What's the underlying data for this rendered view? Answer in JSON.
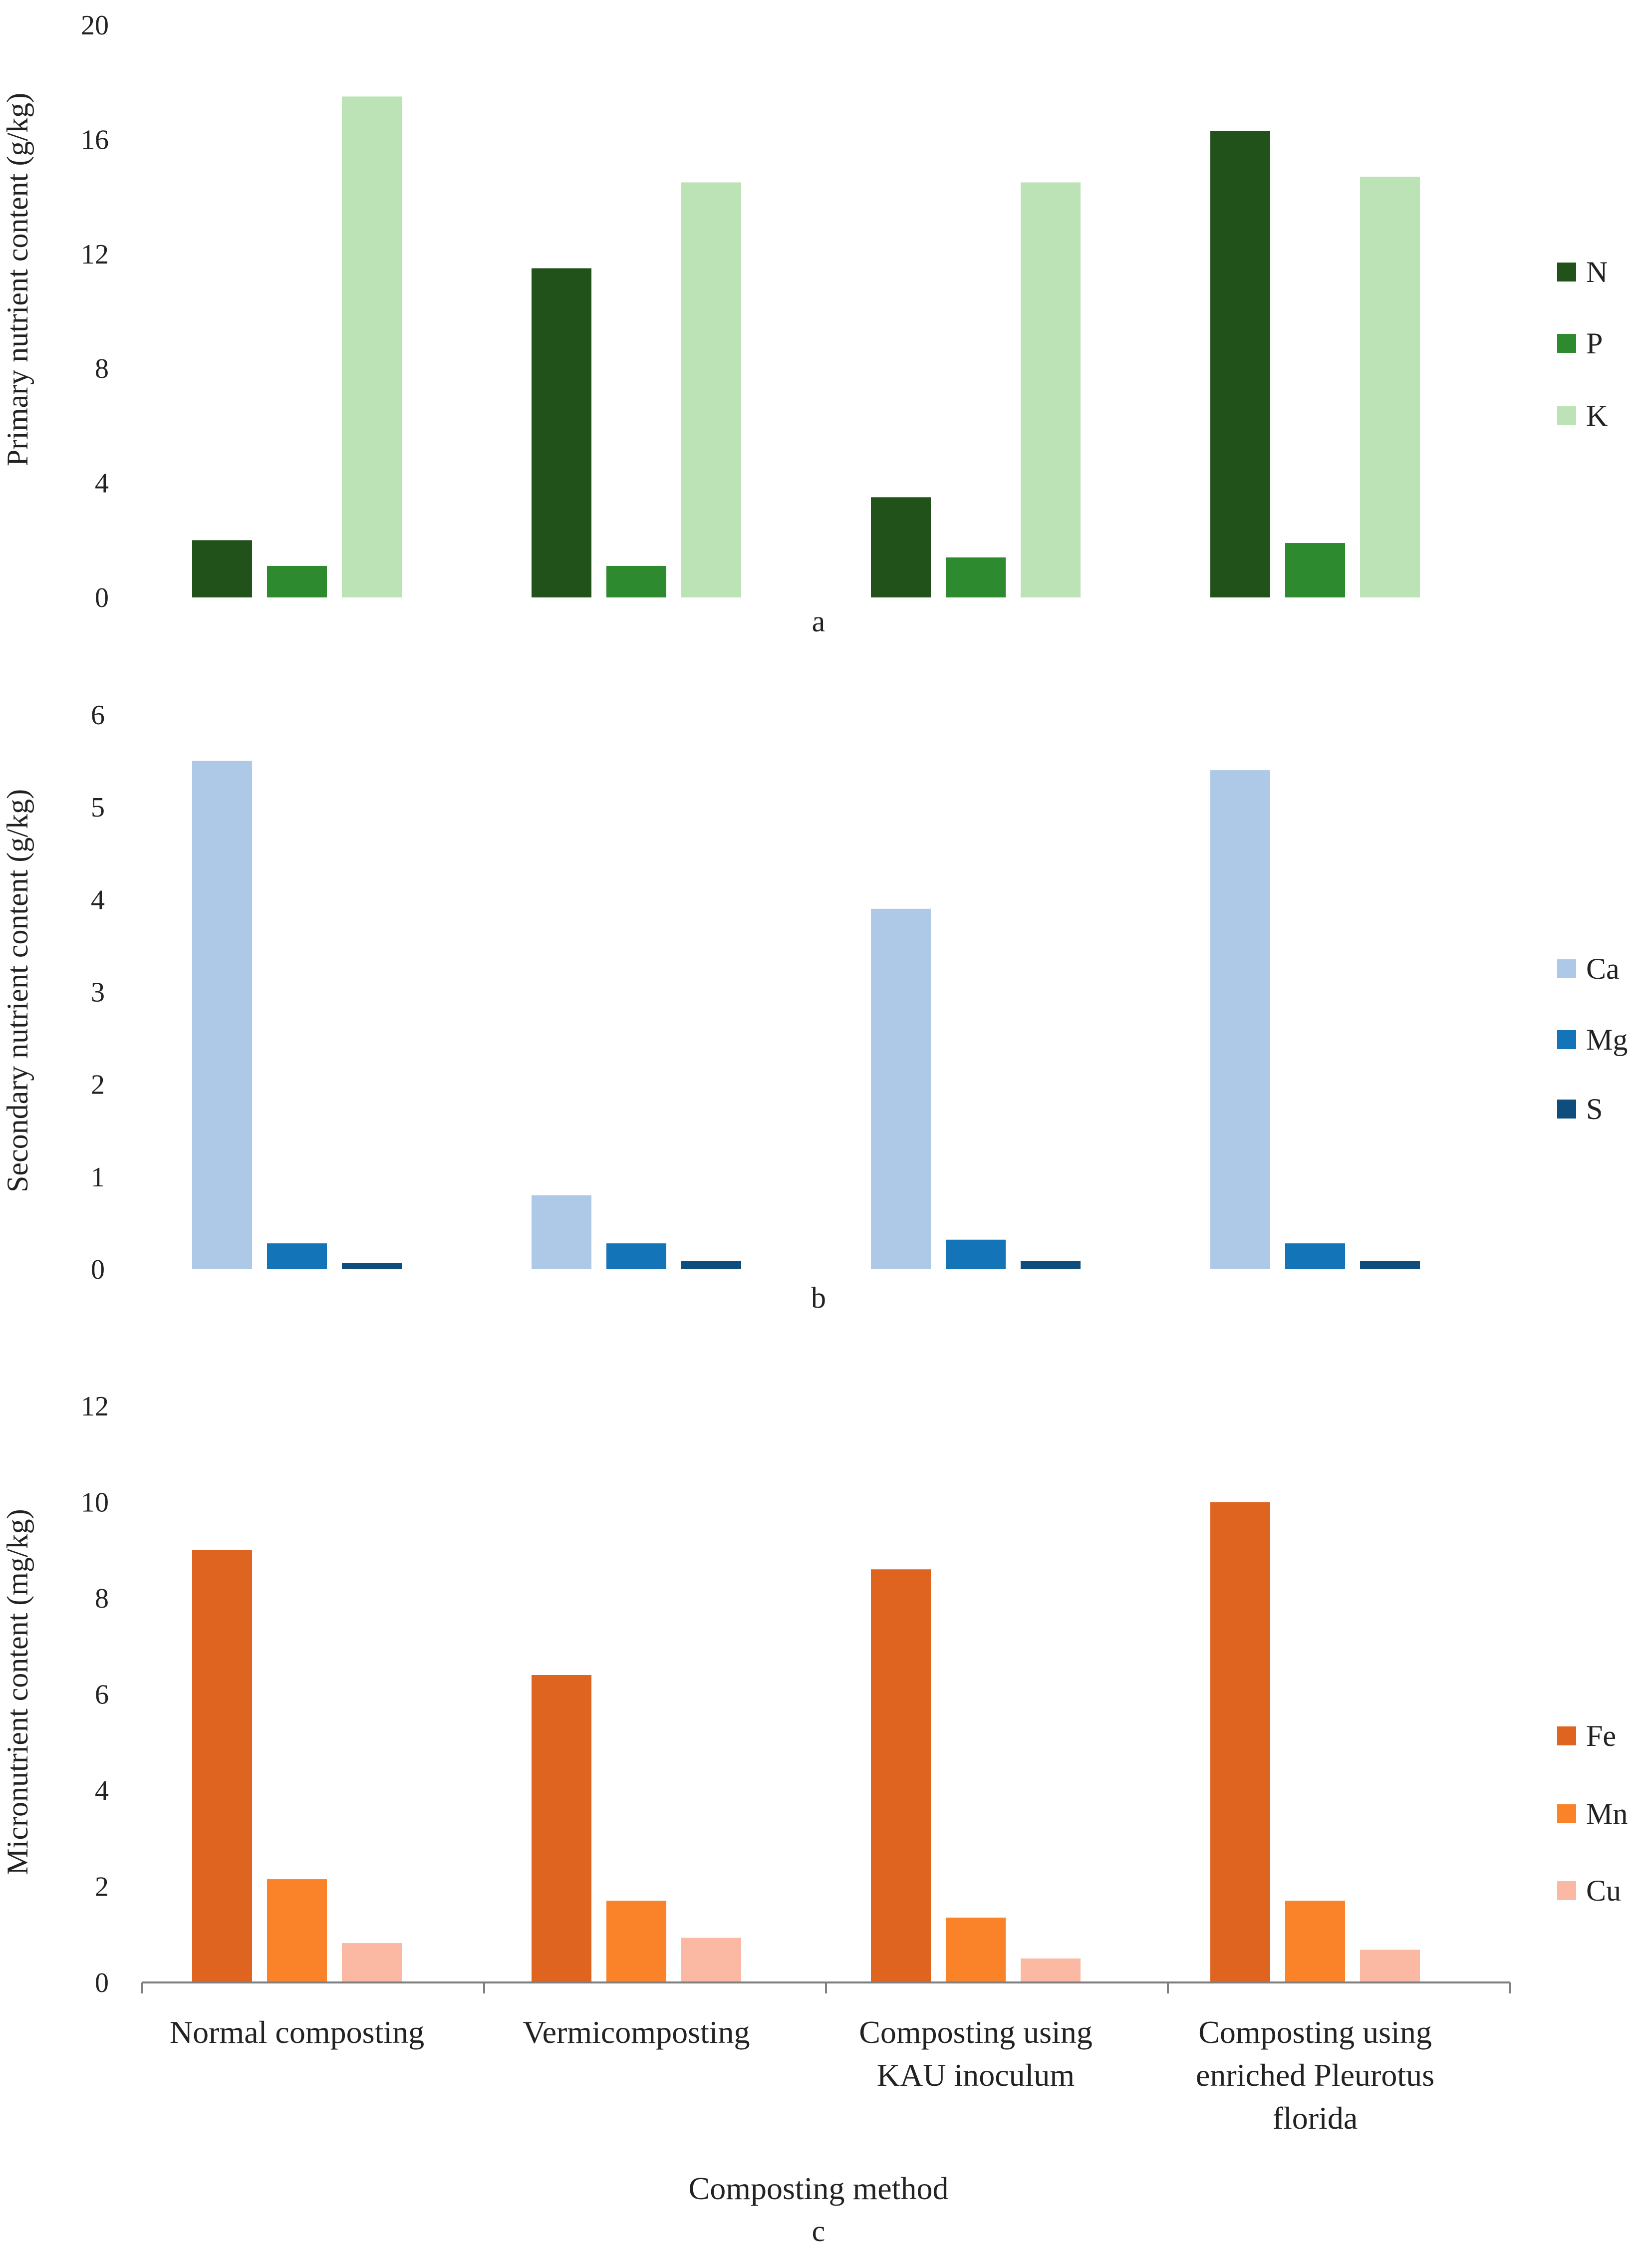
{
  "chart_data": [
    {
      "type": "bar",
      "panel_label": "a",
      "ylabel": "Primary nutrient content (g/kg)",
      "ylim": [
        0,
        20
      ],
      "yticks": [
        0,
        4,
        8,
        12,
        16,
        20
      ],
      "categories": [
        "Normal composting",
        "Vermicomposting",
        "Composting using KAU inoculum",
        "Composting using enriched Pleurotus florida"
      ],
      "series": [
        {
          "name": "N",
          "color": "#205219",
          "values": [
            2.0,
            11.5,
            3.5,
            16.3
          ]
        },
        {
          "name": "P",
          "color": "#2e8a2e",
          "values": [
            1.1,
            1.1,
            1.4,
            1.9
          ]
        },
        {
          "name": "K",
          "color": "#bce3b5",
          "values": [
            17.5,
            14.5,
            14.5,
            14.7
          ]
        }
      ],
      "grid": false,
      "legend": "right"
    },
    {
      "type": "bar",
      "panel_label": "b",
      "ylabel": "Secondary nutrient content (g/kg)",
      "ylim": [
        0,
        6
      ],
      "yticks": [
        0,
        1,
        2,
        3,
        4,
        5,
        6
      ],
      "categories": [
        "Normal composting",
        "Vermicomposting",
        "Composting using KAU inoculum",
        "Composting using enriched Pleurotus florida"
      ],
      "series": [
        {
          "name": "Ca",
          "color": "#aec8e8",
          "values": [
            5.5,
            0.8,
            3.9,
            5.4
          ]
        },
        {
          "name": "Mg",
          "color": "#1474b8",
          "values": [
            0.28,
            0.28,
            0.32,
            0.28
          ]
        },
        {
          "name": "S",
          "color": "#0e4d7c",
          "values": [
            0.07,
            0.09,
            0.09,
            0.09
          ]
        }
      ],
      "grid": false,
      "legend": "right"
    },
    {
      "type": "bar",
      "panel_label": "c",
      "ylabel": "Micronutrient content (mg/kg)",
      "xlabel": "Composting method",
      "ylim": [
        0,
        12
      ],
      "yticks": [
        0,
        2,
        4,
        6,
        8,
        10,
        12
      ],
      "categories": [
        "Normal composting",
        "Vermicomposting",
        "Composting using KAU inoculum",
        "Composting using enriched Pleurotus florida"
      ],
      "category_lines": [
        [
          "Normal composting"
        ],
        [
          "Vermicomposting"
        ],
        [
          "Composting using",
          "KAU inoculum"
        ],
        [
          "Composting using",
          "enriched Pleurotus",
          "florida"
        ]
      ],
      "series": [
        {
          "name": "Fe",
          "color": "#de6420",
          "values": [
            9.0,
            6.4,
            8.6,
            10.0
          ]
        },
        {
          "name": "Mn",
          "color": "#fa8228",
          "values": [
            2.15,
            1.7,
            1.35,
            1.7
          ]
        },
        {
          "name": "Cu",
          "color": "#fbb9a3",
          "values": [
            0.82,
            0.93,
            0.5,
            0.68
          ]
        }
      ],
      "grid": false,
      "legend": "right"
    }
  ]
}
